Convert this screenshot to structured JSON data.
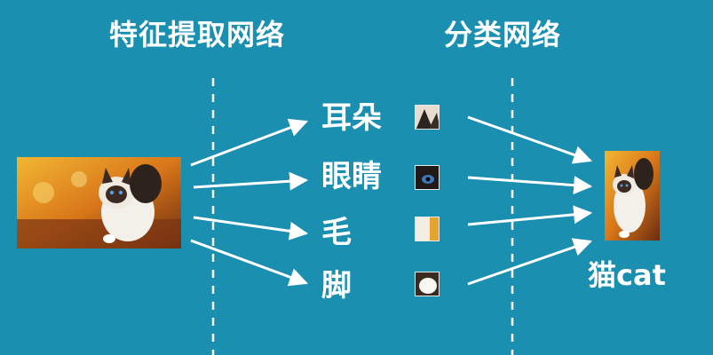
{
  "titles": {
    "feature_extraction": "特征提取网络",
    "classification": "分类网络"
  },
  "features": [
    {
      "label": "耳朵",
      "thumb_icon": "cat-ear-crop"
    },
    {
      "label": "眼睛",
      "thumb_icon": "cat-eye-crop"
    },
    {
      "label": "毛",
      "thumb_icon": "fur-crop"
    },
    {
      "label": "脚",
      "thumb_icon": "paw-crop"
    }
  ],
  "result": {
    "label": "猫cat",
    "icon": "cat-photo"
  },
  "input": {
    "icon": "cat-photo"
  },
  "colors": {
    "background": "#1a8fb0",
    "foreground": "#ffffff"
  }
}
